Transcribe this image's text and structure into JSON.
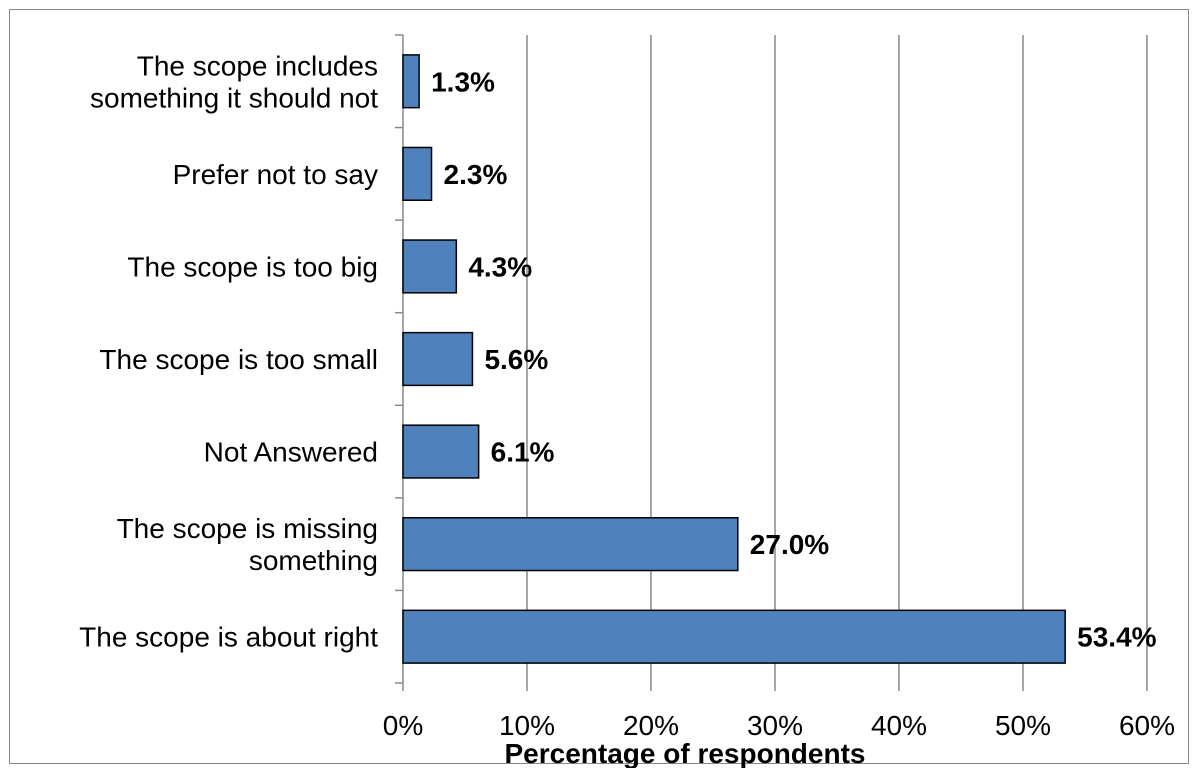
{
  "chart_data": {
    "type": "bar",
    "orientation": "horizontal",
    "categories": [
      "The scope includes something it should not",
      "Prefer not to say",
      "The scope is too big",
      "The scope is too small",
      "Not Answered",
      "The scope is missing something",
      "The scope is about right"
    ],
    "category_lines": [
      [
        "The scope includes",
        "something it should not"
      ],
      [
        "Prefer not to say"
      ],
      [
        "The scope is too big"
      ],
      [
        "The scope is too small"
      ],
      [
        "Not Answered"
      ],
      [
        "The scope is missing",
        "something"
      ],
      [
        "The scope is about right"
      ]
    ],
    "values": [
      1.3,
      2.3,
      4.3,
      5.6,
      6.1,
      27.0,
      53.4
    ],
    "data_labels": [
      "1.3%",
      "2.3%",
      "4.3%",
      "5.6%",
      "6.1%",
      "27.0%",
      "53.4%"
    ],
    "xlim": [
      0,
      60
    ],
    "xticks": [
      0,
      10,
      20,
      30,
      40,
      50,
      60
    ],
    "xtick_labels": [
      "0%",
      "10%",
      "20%",
      "30%",
      "40%",
      "50%",
      "60%"
    ],
    "xlabel": "Percentage of respondents",
    "grid": "vertical",
    "bar_color": "#4F81BD",
    "bar_edge_color": "#000000",
    "grid_color": "#888888"
  }
}
